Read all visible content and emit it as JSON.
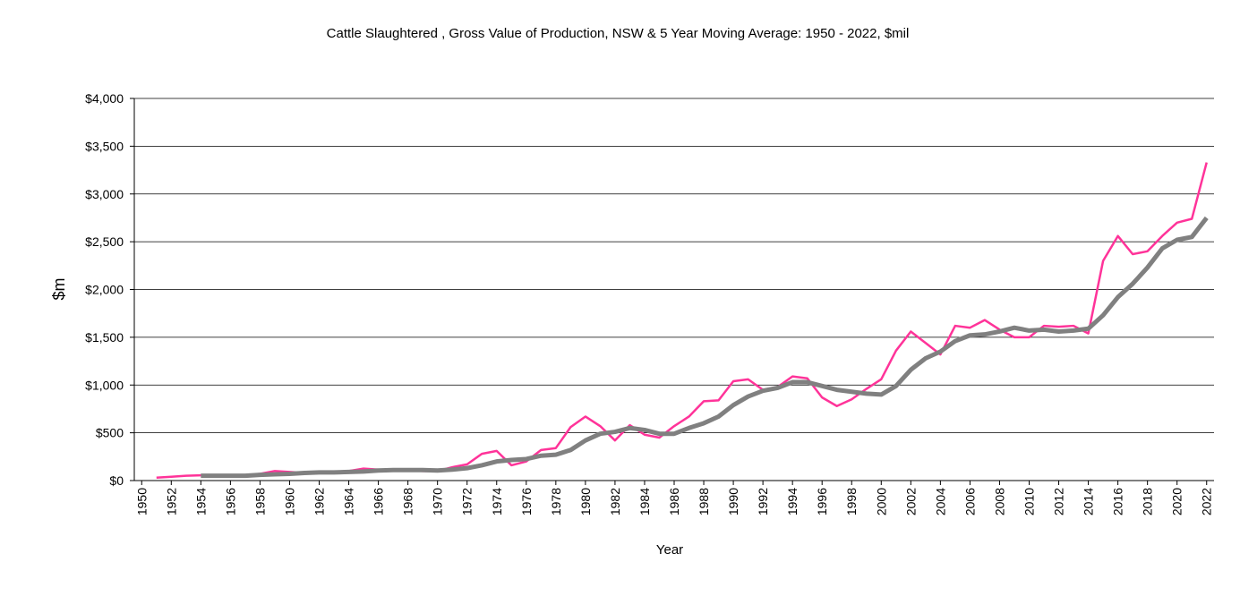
{
  "chart_data": {
    "type": "line",
    "title": "Cattle Slaughtered , Gross Value of Production,  NSW & 5 Year Moving Average: 1950 - 2022, $mil",
    "xlabel": "Year",
    "ylabel": "$m",
    "x": [
      1951,
      1952,
      1953,
      1954,
      1955,
      1956,
      1957,
      1958,
      1959,
      1960,
      1961,
      1962,
      1963,
      1964,
      1965,
      1966,
      1967,
      1968,
      1969,
      1970,
      1971,
      1972,
      1973,
      1974,
      1975,
      1976,
      1977,
      1978,
      1979,
      1980,
      1981,
      1982,
      1983,
      1984,
      1985,
      1986,
      1987,
      1988,
      1989,
      1990,
      1991,
      1992,
      1993,
      1994,
      1995,
      1996,
      1997,
      1998,
      1999,
      2000,
      2001,
      2002,
      2003,
      2004,
      2005,
      2006,
      2007,
      2008,
      2009,
      2010,
      2011,
      2012,
      2013,
      2014,
      2015,
      2016,
      2017,
      2018,
      2019,
      2020,
      2021,
      2022
    ],
    "series": [
      {
        "color": "#ff3399",
        "width": 2.5,
        "values": [
          30,
          40,
          50,
          55,
          55,
          55,
          55,
          70,
          100,
          90,
          80,
          80,
          85,
          100,
          125,
          115,
          110,
          110,
          100,
          100,
          140,
          170,
          280,
          310,
          160,
          200,
          320,
          340,
          560,
          670,
          570,
          420,
          580,
          480,
          450,
          570,
          670,
          830,
          840,
          1040,
          1060,
          950,
          980,
          1090,
          1070,
          870,
          780,
          850,
          960,
          1060,
          1360,
          1560,
          1440,
          1320,
          1620,
          1600,
          1680,
          1580,
          1500,
          1500,
          1620,
          1610,
          1620,
          1540,
          2300,
          2560,
          2370,
          2400,
          2560,
          2700,
          2740,
          3330
        ]
      },
      {
        "color": "#808080",
        "width": 5,
        "values": [
          null,
          null,
          null,
          50,
          50,
          50,
          50,
          60,
          65,
          70,
          80,
          85,
          85,
          90,
          95,
          105,
          110,
          110,
          110,
          105,
          115,
          130,
          160,
          200,
          215,
          225,
          260,
          270,
          320,
          420,
          490,
          510,
          550,
          530,
          490,
          490,
          550,
          600,
          670,
          790,
          880,
          940,
          970,
          1030,
          1030,
          990,
          950,
          930,
          910,
          900,
          990,
          1160,
          1280,
          1350,
          1460,
          1520,
          1530,
          1560,
          1600,
          1570,
          1580,
          1560,
          1570,
          1590,
          1730,
          1920,
          2060,
          2230,
          2430,
          2520,
          2550,
          2750
        ]
      }
    ],
    "xlim": [
      1949.5,
      2022.5
    ],
    "xticks": [
      1950,
      1952,
      1954,
      1956,
      1958,
      1960,
      1962,
      1964,
      1966,
      1968,
      1970,
      1972,
      1974,
      1976,
      1978,
      1980,
      1982,
      1984,
      1986,
      1988,
      1990,
      1992,
      1994,
      1996,
      1998,
      2000,
      2002,
      2004,
      2006,
      2008,
      2010,
      2012,
      2014,
      2016,
      2018,
      2020,
      2022
    ],
    "ylim": [
      0,
      4000
    ],
    "yticks": [
      {
        "value": 0,
        "label": "$0"
      },
      {
        "value": 500,
        "label": "$500"
      },
      {
        "value": 1000,
        "label": "$1,000"
      },
      {
        "value": 1500,
        "label": "$1,500"
      },
      {
        "value": 2000,
        "label": "$2,000"
      },
      {
        "value": 2500,
        "label": "$2,500"
      },
      {
        "value": 3000,
        "label": "$3,000"
      },
      {
        "value": 3500,
        "label": "$3,500"
      },
      {
        "value": 4000,
        "label": "$4,000"
      }
    ],
    "grid": true
  }
}
